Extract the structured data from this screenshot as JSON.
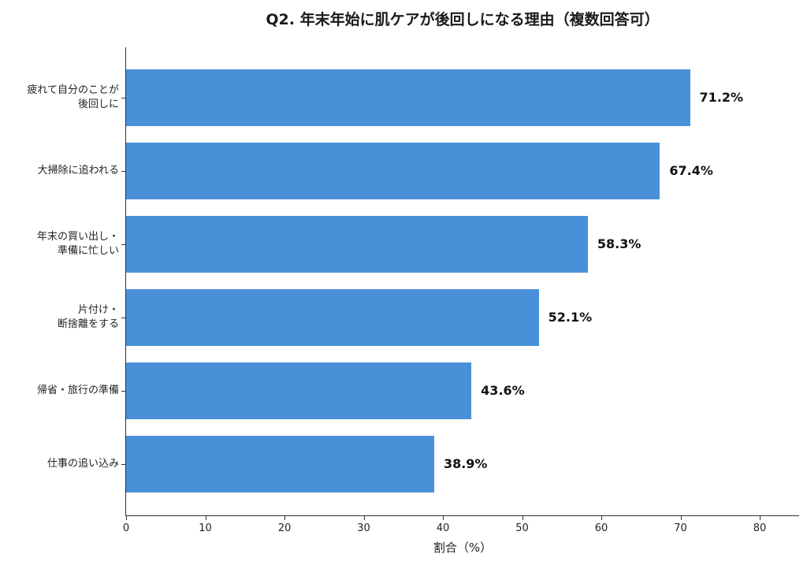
{
  "chart_data": {
    "type": "bar",
    "orientation": "horizontal",
    "title": "Q2. 年末年始に肌ケアが後回しになる理由（複数回答可）",
    "xlabel": "割合（%）",
    "ylabel": "",
    "xlim": [
      0,
      85
    ],
    "xticks": [
      0,
      10,
      20,
      30,
      40,
      50,
      60,
      70,
      80
    ],
    "grid": false,
    "legend": null,
    "bar_color": "#4a90d9",
    "categories": [
      "疲れて自分のことが\n後回しに",
      "大掃除に追われる",
      "年末の買い出し・\n準備に忙しい",
      "片付け・\n断捨離をする",
      "帰省・旅行の準備",
      "仕事の追い込み"
    ],
    "values": [
      71.2,
      67.4,
      58.3,
      52.1,
      43.6,
      38.9
    ],
    "value_labels": [
      "71.2%",
      "67.4%",
      "58.3%",
      "52.1%",
      "43.6%",
      "38.9%"
    ]
  }
}
